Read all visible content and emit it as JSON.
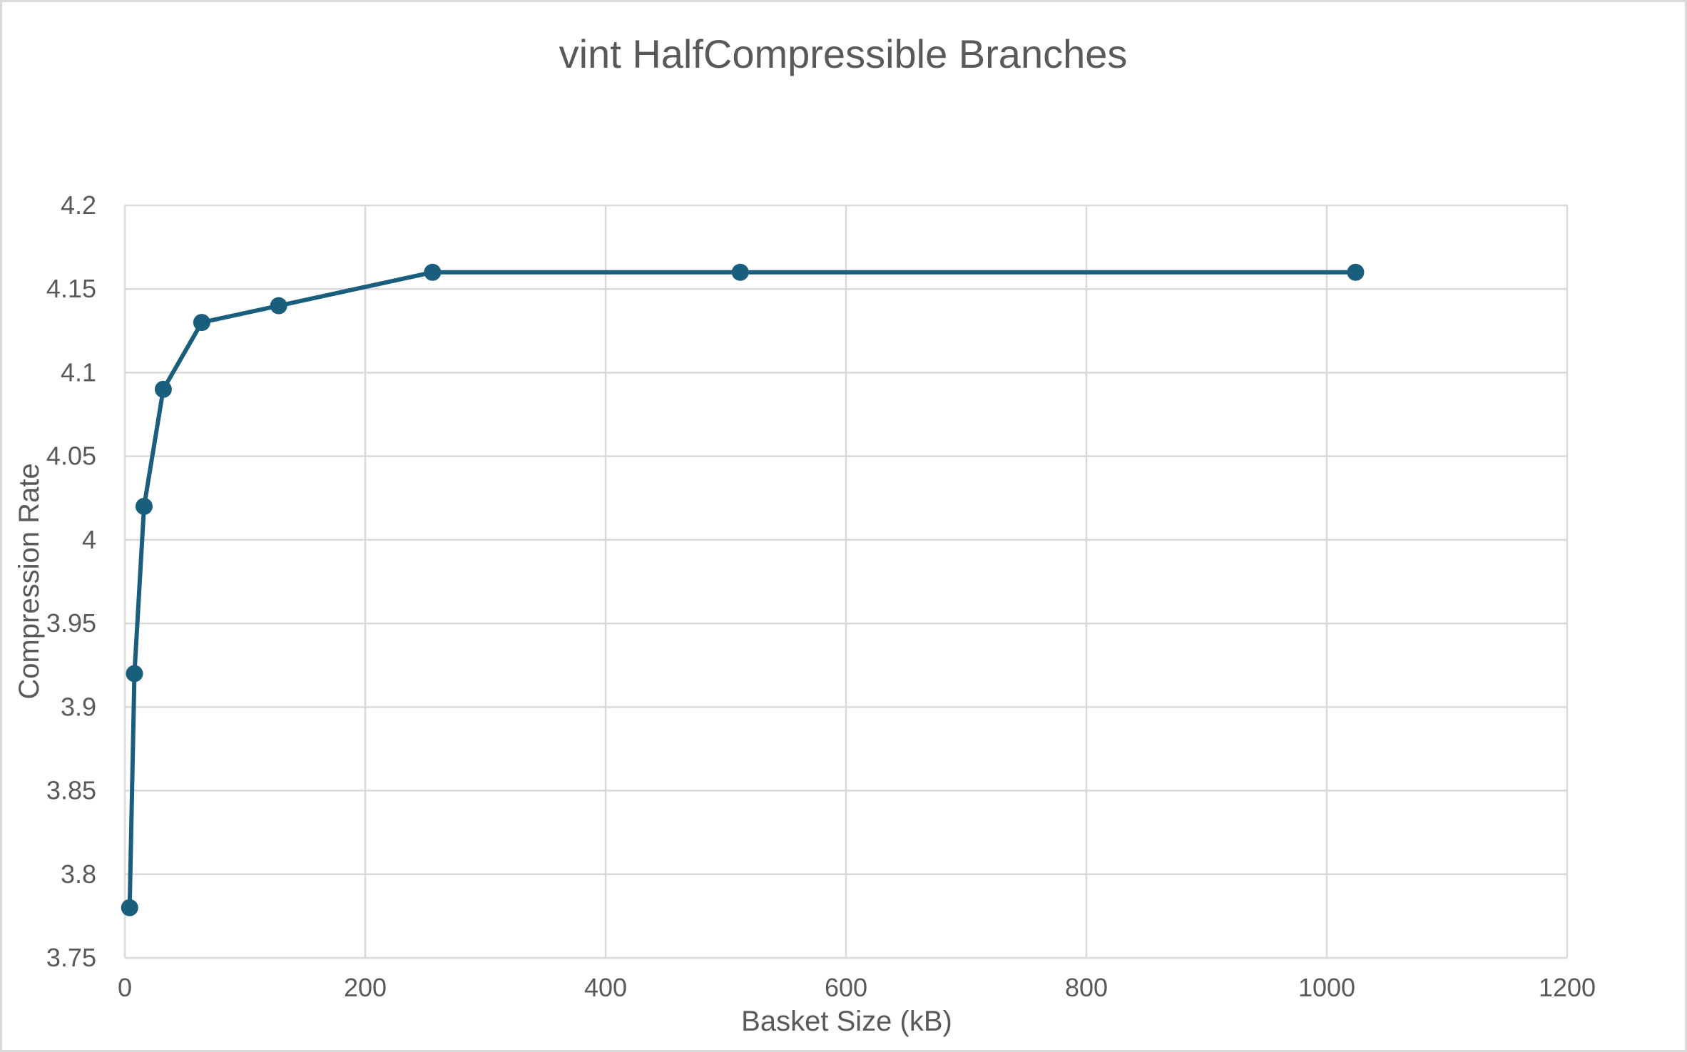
{
  "chart_data": {
    "type": "line",
    "title": "vint HalfCompressible Branches",
    "xlabel": "Basket Size (kB)",
    "ylabel": "Compression Rate",
    "xlim": [
      0,
      1200
    ],
    "ylim": [
      3.75,
      4.2
    ],
    "xticks": [
      0,
      200,
      400,
      600,
      800,
      1000,
      1200
    ],
    "yticks": [
      3.75,
      3.8,
      3.85,
      3.9,
      3.95,
      4,
      4.05,
      4.1,
      4.15,
      4.2
    ],
    "grid": true,
    "legend": "none",
    "series": [
      {
        "color": "#1a5e7e",
        "marker": "circle",
        "points": [
          {
            "x": 4,
            "y": 3.78
          },
          {
            "x": 8,
            "y": 3.92
          },
          {
            "x": 16,
            "y": 4.02
          },
          {
            "x": 32,
            "y": 4.09
          },
          {
            "x": 64,
            "y": 4.13
          },
          {
            "x": 128,
            "y": 4.14
          },
          {
            "x": 256,
            "y": 4.16
          },
          {
            "x": 512,
            "y": 4.16
          },
          {
            "x": 1024,
            "y": 4.16
          }
        ]
      }
    ]
  },
  "colors": {
    "gridline": "#d9d9d9",
    "frame": "#d9d9d9",
    "text": "#595959"
  }
}
